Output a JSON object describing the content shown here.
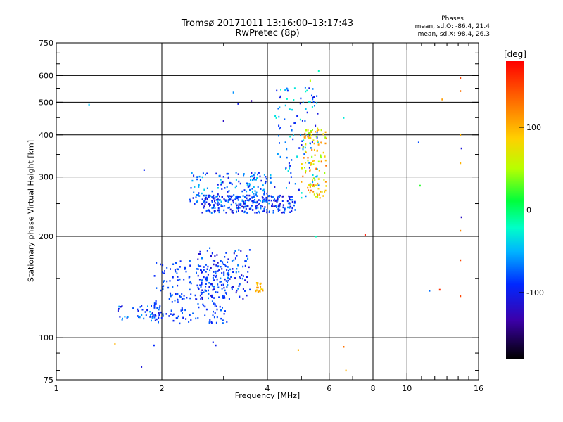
{
  "chart_data": {
    "type": "scatter",
    "title": "Tromsø 20171011 13:16:00–13:17:43",
    "subtitle": "RwPretec (8p)",
    "xlabel": "Frequency [MHz]",
    "ylabel": "Stationary phase Virtual Height [km]",
    "xscale": "log",
    "yscale": "log",
    "xlim": [
      1,
      16
    ],
    "ylim": [
      75,
      750
    ],
    "xticks": [
      1,
      2,
      4,
      6,
      8,
      10,
      16
    ],
    "yticks": [
      75,
      100,
      200,
      300,
      400,
      500,
      600,
      750
    ],
    "xtick_labels": [
      "1",
      "2",
      "4",
      "6",
      "8",
      "10",
      "16"
    ],
    "ytick_labels": [
      "75",
      "100",
      "200",
      "300",
      "400",
      "500",
      "600",
      "750"
    ],
    "grid": true,
    "phases_stats": {
      "label": "Phases",
      "o_line": "mean, sd,O: -86.4, 21.4",
      "x_line": "mean, sd,X:  98.4, 26.3"
    },
    "colorbar": {
      "unit": "[deg]",
      "ticks": [
        100,
        0,
        -100
      ],
      "tick_labels": [
        "100",
        "0",
        "-100"
      ],
      "range": [
        -180,
        180
      ]
    },
    "series": [
      {
        "clusters": [
          {
            "x": [
              1.9,
              3.1
            ],
            "y": [
              110,
              170
            ],
            "phase": [
              -100,
              -70
            ],
            "n": 220
          },
          {
            "x": [
              2.5,
              3.6
            ],
            "y": [
              130,
              185
            ],
            "phase": [
              -120,
              -60
            ],
            "n": 130
          },
          {
            "x": [
              2.6,
              4.8
            ],
            "y": [
              235,
              265
            ],
            "phase": [
              -120,
              -60
            ],
            "n": 260
          },
          {
            "x": [
              2.4,
              4.2
            ],
            "y": [
              250,
              310
            ],
            "phase": [
              -110,
              -40
            ],
            "n": 160
          },
          {
            "x": [
              4.2,
              5.6
            ],
            "y": [
              260,
              560
            ],
            "phase": [
              -110,
              -20
            ],
            "n": 110
          },
          {
            "x": [
              5.0,
              5.9
            ],
            "y": [
              260,
              420
            ],
            "phase": [
              40,
              140
            ],
            "n": 110
          },
          {
            "x": [
              1.5,
              2.0
            ],
            "y": [
              112,
              125
            ],
            "phase": [
              -110,
              -50
            ],
            "n": 45
          },
          {
            "x": [
              3.7,
              3.9
            ],
            "y": [
              136,
              146
            ],
            "phase": [
              80,
              120
            ],
            "n": 20
          }
        ],
        "points": [
          {
            "x": 1.24,
            "y": 492,
            "phase": -45
          },
          {
            "x": 1.78,
            "y": 315,
            "phase": -95
          },
          {
            "x": 1.9,
            "y": 95,
            "phase": -90
          },
          {
            "x": 1.75,
            "y": 82,
            "phase": -110
          },
          {
            "x": 1.47,
            "y": 96,
            "phase": 100
          },
          {
            "x": 2.8,
            "y": 97,
            "phase": -100
          },
          {
            "x": 2.85,
            "y": 95,
            "phase": -100
          },
          {
            "x": 4.9,
            "y": 92,
            "phase": 100
          },
          {
            "x": 5.5,
            "y": 200,
            "phase": -20
          },
          {
            "x": 6.6,
            "y": 94,
            "phase": 130
          },
          {
            "x": 6.7,
            "y": 80,
            "phase": 100
          },
          {
            "x": 6.6,
            "y": 450,
            "phase": -30
          },
          {
            "x": 7.6,
            "y": 202,
            "phase": 170
          },
          {
            "x": 10.8,
            "y": 380,
            "phase": -80
          },
          {
            "x": 10.9,
            "y": 283,
            "phase": 20
          },
          {
            "x": 11.6,
            "y": 138,
            "phase": -70
          },
          {
            "x": 12.4,
            "y": 139,
            "phase": 160
          },
          {
            "x": 12.6,
            "y": 510,
            "phase": 110
          },
          {
            "x": 14.2,
            "y": 590,
            "phase": 150
          },
          {
            "x": 14.2,
            "y": 540,
            "phase": 130
          },
          {
            "x": 14.2,
            "y": 400,
            "phase": 100
          },
          {
            "x": 14.3,
            "y": 365,
            "phase": -110
          },
          {
            "x": 14.2,
            "y": 330,
            "phase": 100
          },
          {
            "x": 14.3,
            "y": 228,
            "phase": -120
          },
          {
            "x": 14.2,
            "y": 208,
            "phase": 120
          },
          {
            "x": 14.2,
            "y": 170,
            "phase": 150
          },
          {
            "x": 14.2,
            "y": 133,
            "phase": 150
          },
          {
            "x": 3.6,
            "y": 505,
            "phase": -130
          },
          {
            "x": 3.3,
            "y": 495,
            "phase": -100
          },
          {
            "x": 3.2,
            "y": 535,
            "phase": -60
          },
          {
            "x": 3.0,
            "y": 440,
            "phase": -120
          },
          {
            "x": 5.6,
            "y": 620,
            "phase": -20
          },
          {
            "x": 5.3,
            "y": 580,
            "phase": 50
          }
        ]
      }
    ]
  }
}
